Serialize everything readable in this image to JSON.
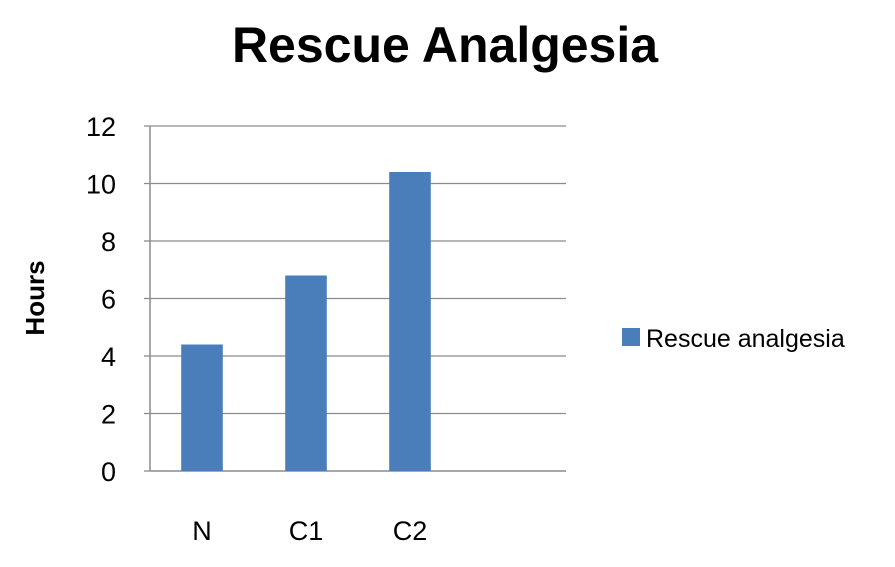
{
  "chart_data": {
    "type": "bar",
    "title": "Rescue Analgesia",
    "xlabel": "",
    "ylabel": "Hours",
    "categories": [
      "N",
      "C1",
      "C2"
    ],
    "series": [
      {
        "name": "Rescue analgesia",
        "values": [
          4.4,
          6.8,
          10.4
        ],
        "color": "#4a7ebb"
      }
    ],
    "ylim": [
      0,
      12
    ],
    "yticks": [
      0,
      2,
      4,
      6,
      8,
      10,
      12
    ],
    "grid": true,
    "legend_position": "right"
  }
}
